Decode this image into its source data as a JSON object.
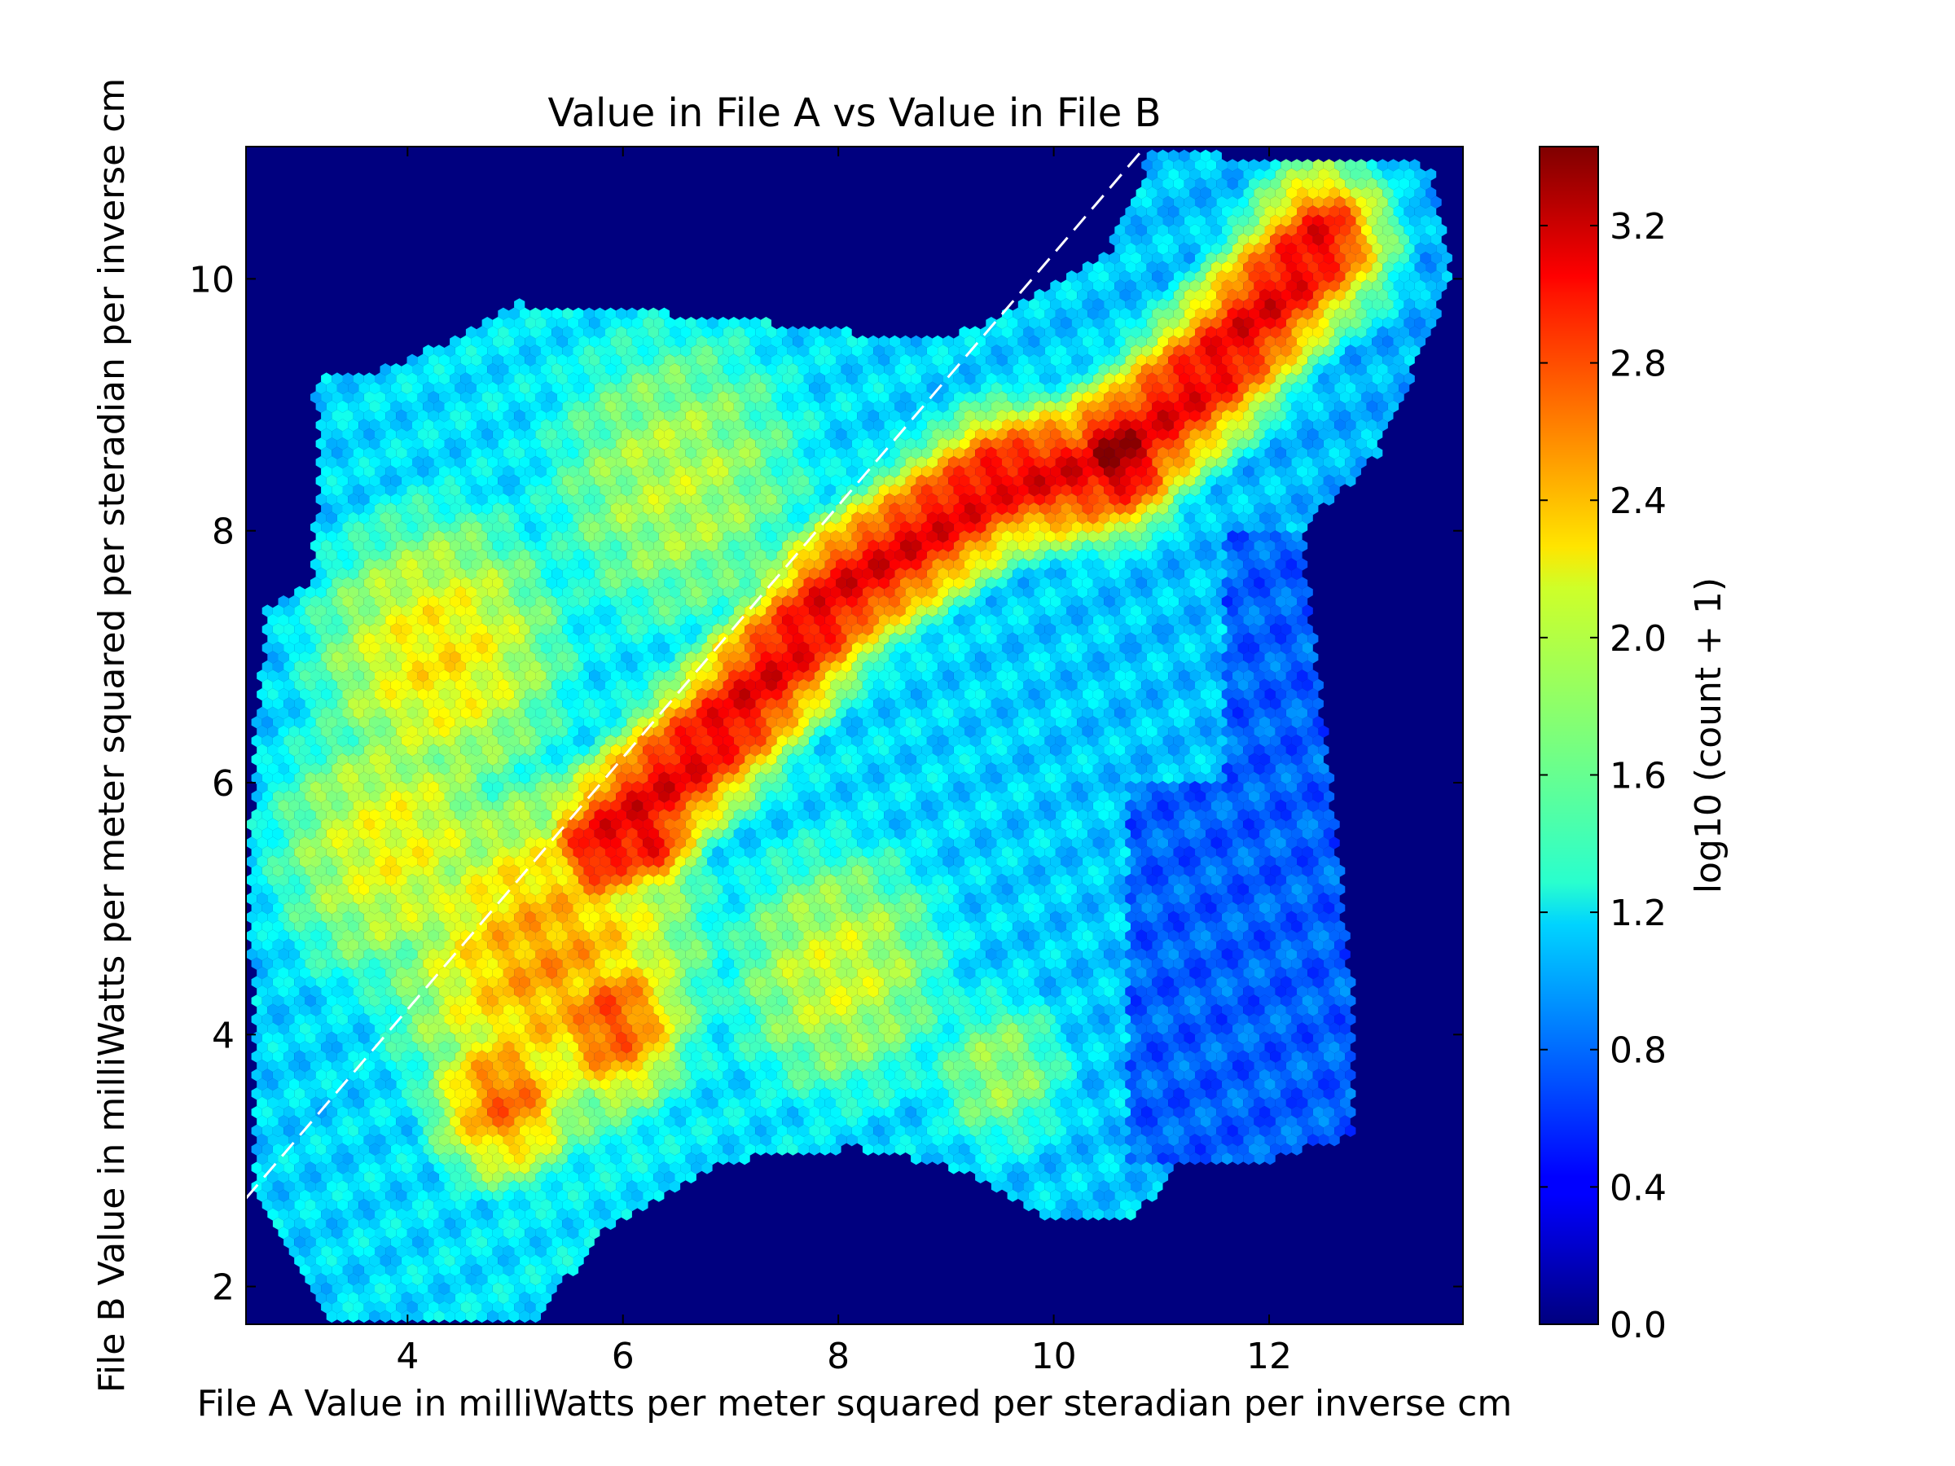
{
  "chart_data": {
    "type": "heatmap",
    "subtype": "hexbin",
    "title": "Value in File A vs Value in File B",
    "xlabel": "File A Value in milliWatts per meter squared per steradian per inverse cm",
    "ylabel": "File B Value in milliWatts per meter squared per steradian per inverse cm",
    "xlim": [
      2.5,
      13.8
    ],
    "ylim": [
      1.7,
      11.05
    ],
    "xticks": [
      4,
      6,
      8,
      10,
      12
    ],
    "yticks": [
      2,
      4,
      6,
      8,
      10
    ],
    "colorbar": {
      "label": "log10 (count + 1)",
      "colormap": "jet",
      "range": [
        0.0,
        3.43
      ],
      "ticks": [
        0.0,
        0.4,
        0.8,
        1.2,
        1.6,
        2.0,
        2.4,
        2.8,
        3.2
      ],
      "tick_labels": [
        "0.0",
        "0.4",
        "0.8",
        "1.2",
        "1.6",
        "2.0",
        "2.4",
        "2.8",
        "3.2"
      ]
    },
    "background_color": "#00007f",
    "reference_line": {
      "style": "dashed",
      "color": "#ffffff",
      "points": [
        [
          2.5,
          2.7
        ],
        [
          10.8,
          11.0
        ]
      ]
    },
    "density_features": [
      {
        "kind": "ridge",
        "points": [
          [
            5.8,
            5.5
          ],
          [
            7.0,
            6.5
          ],
          [
            8.0,
            7.5
          ],
          [
            9.5,
            8.4
          ],
          [
            10.5,
            8.5
          ],
          [
            11.5,
            9.3
          ],
          [
            12.5,
            10.3
          ]
        ],
        "peak": 3.2
      },
      {
        "kind": "blob",
        "center": [
          10.6,
          8.6
        ],
        "peak": 3.4
      },
      {
        "kind": "blob",
        "center": [
          6.2,
          5.6
        ],
        "peak": 3.1
      },
      {
        "kind": "blob",
        "center": [
          5.9,
          4.1
        ],
        "peak": 2.8
      },
      {
        "kind": "blob",
        "center": [
          4.9,
          3.5
        ],
        "peak": 2.7
      }
    ]
  }
}
